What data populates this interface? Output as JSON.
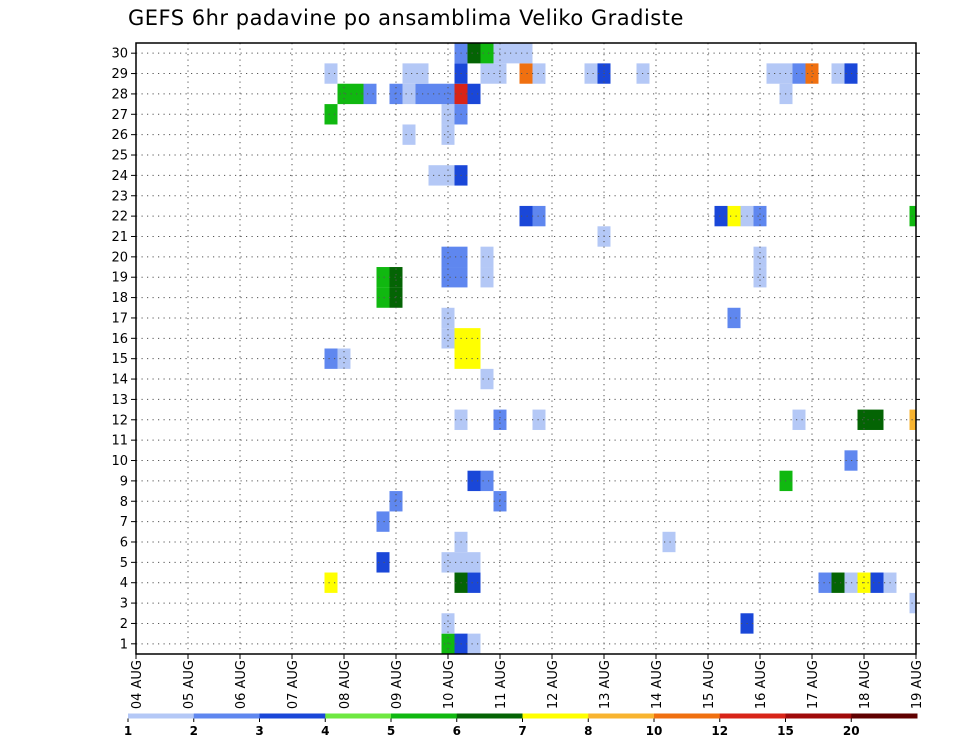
{
  "title": "GEFS 6hr padavine po ansamblima Veliko Gradiste",
  "chart_data": {
    "type": "heatmap",
    "title": "GEFS 6hr padavine po ansamblima Veliko Gradiste",
    "xlabel": "",
    "ylabel": "",
    "x_ticks": [
      "04 AUG",
      "05 AUG",
      "06 AUG",
      "07 AUG",
      "08 AUG",
      "09 AUG",
      "10 AUG",
      "11 AUG",
      "12 AUG",
      "13 AUG",
      "14 AUG",
      "15 AUG",
      "16 AUG",
      "17 AUG",
      "18 AUG",
      "19 AUG"
    ],
    "xlim": [
      0,
      15
    ],
    "ylim": [
      0.5,
      30.5
    ],
    "y_ticks": [
      1,
      2,
      3,
      4,
      5,
      6,
      7,
      8,
      9,
      10,
      11,
      12,
      13,
      14,
      15,
      16,
      17,
      18,
      19,
      20,
      21,
      22,
      23,
      24,
      25,
      26,
      27,
      28,
      29,
      30
    ],
    "grid": true,
    "legend": {
      "placement": "bottom",
      "levels": [
        "1",
        "2",
        "3",
        "4",
        "5",
        "6",
        "7",
        "8",
        "10",
        "12",
        "15",
        "20"
      ],
      "colors": [
        "#b4c8f6",
        "#5f87ef",
        "#1a47d8",
        "#6ee840",
        "#10b810",
        "#046404",
        "#ffff00",
        "#f8b430",
        "#f07010",
        "#d82418",
        "#a00a0a",
        "#600000"
      ]
    },
    "cells": [
      [
        6,
        1,
        5
      ],
      [
        6.25,
        1,
        3
      ],
      [
        6.5,
        1,
        1
      ],
      [
        6,
        2,
        1
      ],
      [
        11.75,
        2,
        3
      ],
      [
        15,
        3,
        1
      ],
      [
        3.75,
        4,
        7
      ],
      [
        6.25,
        4,
        6
      ],
      [
        6.5,
        4,
        3
      ],
      [
        13.25,
        4,
        2
      ],
      [
        13.5,
        4,
        6
      ],
      [
        13.75,
        4,
        1
      ],
      [
        14,
        4,
        7
      ],
      [
        14.25,
        4,
        3
      ],
      [
        14.5,
        4,
        1
      ],
      [
        4.75,
        5,
        3
      ],
      [
        6,
        5,
        1
      ],
      [
        6.25,
        5,
        1
      ],
      [
        6.5,
        5,
        1
      ],
      [
        6.25,
        6,
        1
      ],
      [
        10.25,
        6,
        1
      ],
      [
        4.75,
        7,
        2
      ],
      [
        5,
        8,
        2
      ],
      [
        7,
        8,
        2
      ],
      [
        6.5,
        9,
        3
      ],
      [
        6.75,
        9,
        2
      ],
      [
        12.5,
        9,
        5
      ],
      [
        13.75,
        10,
        2
      ],
      [
        6.25,
        12,
        1
      ],
      [
        7,
        12,
        2
      ],
      [
        7.75,
        12,
        1
      ],
      [
        12.75,
        12,
        1
      ],
      [
        14,
        12,
        6
      ],
      [
        14.25,
        12,
        6
      ],
      [
        15,
        12,
        8
      ],
      [
        6.75,
        14,
        1
      ],
      [
        3.75,
        15,
        2
      ],
      [
        4,
        15,
        1
      ],
      [
        6.25,
        15,
        7
      ],
      [
        6.5,
        15,
        7
      ],
      [
        6,
        16,
        1
      ],
      [
        6.25,
        16,
        7
      ],
      [
        6.5,
        16,
        7
      ],
      [
        6,
        17,
        1
      ],
      [
        11.5,
        17,
        2
      ],
      [
        4.75,
        18,
        5
      ],
      [
        5,
        18,
        6
      ],
      [
        4.75,
        19,
        5
      ],
      [
        5,
        19,
        6
      ],
      [
        6,
        19,
        2
      ],
      [
        6.25,
        19,
        2
      ],
      [
        6.75,
        19,
        1
      ],
      [
        12,
        19,
        1
      ],
      [
        6,
        20,
        2
      ],
      [
        6.25,
        20,
        2
      ],
      [
        6.75,
        20,
        1
      ],
      [
        12,
        20,
        1
      ],
      [
        9,
        21,
        1
      ],
      [
        7.5,
        22,
        3
      ],
      [
        7.75,
        22,
        2
      ],
      [
        11.25,
        22,
        3
      ],
      [
        11.5,
        22,
        7
      ],
      [
        11.75,
        22,
        1
      ],
      [
        12,
        22,
        2
      ],
      [
        15,
        22,
        5
      ],
      [
        5.75,
        24,
        1
      ],
      [
        6,
        24,
        1
      ],
      [
        6.25,
        24,
        3
      ],
      [
        5.25,
        26,
        1
      ],
      [
        6,
        26,
        1
      ],
      [
        3.75,
        27,
        5
      ],
      [
        6,
        27,
        1
      ],
      [
        6.25,
        27,
        2
      ],
      [
        4,
        28,
        5
      ],
      [
        4.25,
        28,
        5
      ],
      [
        4.5,
        28,
        2
      ],
      [
        5,
        28,
        2
      ],
      [
        5.25,
        28,
        1
      ],
      [
        5.5,
        28,
        2
      ],
      [
        5.75,
        28,
        2
      ],
      [
        6,
        28,
        2
      ],
      [
        6.25,
        28,
        10
      ],
      [
        6.5,
        28,
        3
      ],
      [
        12.5,
        28,
        1
      ],
      [
        3.75,
        29,
        1
      ],
      [
        5.25,
        29,
        1
      ],
      [
        5.5,
        29,
        1
      ],
      [
        6.25,
        29,
        3
      ],
      [
        6.75,
        29,
        1
      ],
      [
        7,
        29,
        1
      ],
      [
        7.5,
        29,
        9
      ],
      [
        7.75,
        29,
        1
      ],
      [
        8.75,
        29,
        1
      ],
      [
        9,
        29,
        3
      ],
      [
        9.75,
        29,
        1
      ],
      [
        12.25,
        29,
        1
      ],
      [
        12.5,
        29,
        1
      ],
      [
        12.75,
        29,
        2
      ],
      [
        13,
        29,
        9
      ],
      [
        13.5,
        29,
        1
      ],
      [
        13.75,
        29,
        3
      ],
      [
        6.25,
        30,
        2
      ],
      [
        6.5,
        30,
        6
      ],
      [
        6.75,
        30,
        5
      ],
      [
        7,
        30,
        1
      ],
      [
        7.25,
        30,
        1
      ],
      [
        7.5,
        30,
        1
      ]
    ]
  }
}
